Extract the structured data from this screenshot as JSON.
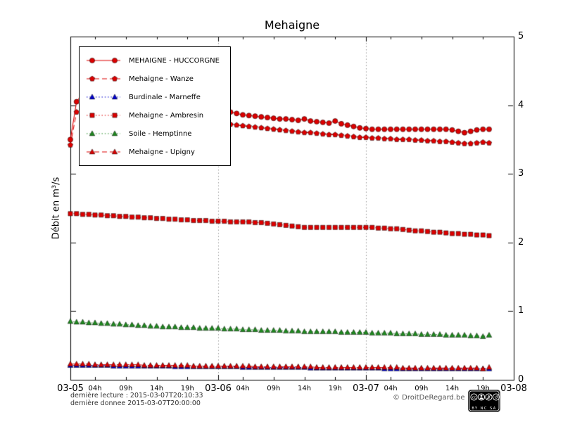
{
  "title": "Mehaigne",
  "y_axis": {
    "label": "Débit en m³/s",
    "min": 0,
    "max": 5,
    "ticks": [
      0,
      1,
      2,
      3,
      4,
      5
    ]
  },
  "x_axis": {
    "range_hours": [
      0,
      72
    ],
    "gridline_hours": [
      24,
      48
    ],
    "major_ticks": [
      {
        "label": "03-05",
        "hour": 0
      },
      {
        "label": "03-06",
        "hour": 24
      },
      {
        "label": "03-07",
        "hour": 48
      },
      {
        "label": "03-08",
        "hour": 72
      }
    ],
    "minor_ticks": [
      {
        "label": "04h",
        "hour": 4
      },
      {
        "label": "09h",
        "hour": 9
      },
      {
        "label": "14h",
        "hour": 14
      },
      {
        "label": "19h",
        "hour": 19
      },
      {
        "label": "04h",
        "hour": 28
      },
      {
        "label": "09h",
        "hour": 33
      },
      {
        "label": "14h",
        "hour": 38
      },
      {
        "label": "19h",
        "hour": 43
      },
      {
        "label": "04h",
        "hour": 52
      },
      {
        "label": "09h",
        "hour": 57
      },
      {
        "label": "14h",
        "hour": 62
      },
      {
        "label": "19h",
        "hour": 67
      }
    ]
  },
  "footer": {
    "line1": "dernière lecture : 2015-03-07T20:10:33",
    "line2": "dernière donnee  2015-03-07T20:00:00",
    "copyright": "© DroitDeRegard.be"
  },
  "cc_badge": {
    "cc": "cc",
    "sub": "BY NC SA"
  },
  "chart_data": {
    "type": "line",
    "title": "Mehaigne",
    "ylabel": "Débit en m³/s",
    "ylim": [
      0,
      5
    ],
    "x_start": "2015-03-05T00:00",
    "x_step_hours": 1,
    "legend_position": "top-left",
    "grid": "vertical-dotted-at-days",
    "series": [
      {
        "name": "MEHAIGNE - HUCCORGNE",
        "color": "#dd0000",
        "marker": "circle",
        "line_style": "solid",
        "values": [
          3.5,
          4.05,
          4.17,
          4.0,
          3.92,
          3.88,
          3.85,
          3.83,
          3.81,
          3.79,
          3.78,
          3.77,
          3.76,
          3.75,
          3.74,
          3.73,
          3.72,
          3.71,
          3.71,
          3.7,
          3.7,
          3.7,
          3.71,
          3.73,
          3.78,
          3.88,
          3.9,
          3.88,
          3.86,
          3.85,
          3.84,
          3.83,
          3.82,
          3.81,
          3.8,
          3.8,
          3.79,
          3.78,
          3.8,
          3.77,
          3.76,
          3.75,
          3.74,
          3.77,
          3.73,
          3.71,
          3.69,
          3.67,
          3.66,
          3.65,
          3.65,
          3.65,
          3.65,
          3.65,
          3.65,
          3.65,
          3.65,
          3.65,
          3.65,
          3.65,
          3.65,
          3.65,
          3.64,
          3.62,
          3.6,
          3.62,
          3.64,
          3.65,
          3.65
        ]
      },
      {
        "name": "Mehaigne - Wanze",
        "color": "#dd0000",
        "marker": "pentagon",
        "line_style": "dashed",
        "values": [
          3.42,
          3.9,
          4.0,
          3.9,
          3.87,
          3.84,
          3.82,
          3.8,
          3.79,
          3.78,
          3.77,
          3.76,
          3.75,
          3.74,
          3.73,
          3.73,
          3.72,
          3.72,
          3.71,
          3.71,
          3.7,
          3.7,
          3.7,
          3.71,
          3.72,
          3.73,
          3.72,
          3.71,
          3.7,
          3.69,
          3.68,
          3.67,
          3.66,
          3.65,
          3.64,
          3.63,
          3.62,
          3.61,
          3.6,
          3.6,
          3.59,
          3.58,
          3.57,
          3.57,
          3.56,
          3.55,
          3.54,
          3.53,
          3.53,
          3.52,
          3.52,
          3.51,
          3.51,
          3.5,
          3.5,
          3.5,
          3.49,
          3.49,
          3.48,
          3.48,
          3.47,
          3.47,
          3.46,
          3.45,
          3.44,
          3.44,
          3.45,
          3.46,
          3.45
        ]
      },
      {
        "name": "Burdinale - Marneffe",
        "color": "#0000d0",
        "marker": "triangle",
        "line_style": "dotted",
        "values": [
          0.21,
          0.21,
          0.21,
          0.21,
          0.21,
          0.21,
          0.21,
          0.2,
          0.2,
          0.2,
          0.2,
          0.2,
          0.2,
          0.2,
          0.2,
          0.2,
          0.2,
          0.19,
          0.19,
          0.19,
          0.19,
          0.19,
          0.19,
          0.19,
          0.19,
          0.19,
          0.19,
          0.19,
          0.18,
          0.18,
          0.18,
          0.18,
          0.18,
          0.18,
          0.18,
          0.18,
          0.18,
          0.18,
          0.18,
          0.17,
          0.17,
          0.17,
          0.17,
          0.17,
          0.17,
          0.17,
          0.17,
          0.17,
          0.17,
          0.17,
          0.17,
          0.16,
          0.16,
          0.16,
          0.16,
          0.16,
          0.16,
          0.16,
          0.16,
          0.16,
          0.16,
          0.16,
          0.16,
          0.16,
          0.16,
          0.16,
          0.16,
          0.16,
          0.16
        ]
      },
      {
        "name": "Mehaigne - Ambresin",
        "color": "#dd0000",
        "marker": "square",
        "line_style": "dotted",
        "values": [
          2.42,
          2.42,
          2.41,
          2.41,
          2.4,
          2.4,
          2.39,
          2.39,
          2.38,
          2.38,
          2.37,
          2.37,
          2.36,
          2.36,
          2.35,
          2.35,
          2.34,
          2.34,
          2.33,
          2.33,
          2.32,
          2.32,
          2.32,
          2.31,
          2.31,
          2.31,
          2.3,
          2.3,
          2.3,
          2.3,
          2.29,
          2.29,
          2.28,
          2.27,
          2.26,
          2.25,
          2.24,
          2.23,
          2.22,
          2.22,
          2.22,
          2.22,
          2.22,
          2.22,
          2.22,
          2.22,
          2.22,
          2.22,
          2.22,
          2.22,
          2.21,
          2.21,
          2.2,
          2.2,
          2.19,
          2.18,
          2.17,
          2.17,
          2.16,
          2.15,
          2.15,
          2.14,
          2.13,
          2.13,
          2.12,
          2.12,
          2.11,
          2.11,
          2.1
        ]
      },
      {
        "name": "Soile - Hemptinne",
        "color": "#1f8a1f",
        "marker": "triangle",
        "line_style": "dotted",
        "values": [
          0.85,
          0.84,
          0.84,
          0.83,
          0.83,
          0.82,
          0.82,
          0.81,
          0.81,
          0.8,
          0.8,
          0.79,
          0.79,
          0.78,
          0.78,
          0.77,
          0.77,
          0.77,
          0.76,
          0.76,
          0.76,
          0.75,
          0.75,
          0.75,
          0.75,
          0.74,
          0.74,
          0.74,
          0.73,
          0.73,
          0.73,
          0.72,
          0.72,
          0.72,
          0.72,
          0.71,
          0.71,
          0.71,
          0.7,
          0.7,
          0.7,
          0.7,
          0.7,
          0.7,
          0.69,
          0.69,
          0.69,
          0.69,
          0.69,
          0.68,
          0.68,
          0.68,
          0.68,
          0.67,
          0.67,
          0.67,
          0.67,
          0.66,
          0.66,
          0.66,
          0.66,
          0.65,
          0.65,
          0.65,
          0.65,
          0.64,
          0.64,
          0.63,
          0.65
        ]
      },
      {
        "name": "Mehaigne - Upigny",
        "color": "#dd0000",
        "marker": "triangle",
        "line_style": "dashed",
        "values": [
          0.23,
          0.23,
          0.23,
          0.23,
          0.22,
          0.22,
          0.22,
          0.22,
          0.22,
          0.22,
          0.22,
          0.22,
          0.21,
          0.21,
          0.21,
          0.21,
          0.21,
          0.21,
          0.21,
          0.21,
          0.2,
          0.2,
          0.2,
          0.2,
          0.2,
          0.2,
          0.2,
          0.2,
          0.2,
          0.2,
          0.19,
          0.19,
          0.19,
          0.19,
          0.19,
          0.19,
          0.19,
          0.19,
          0.19,
          0.19,
          0.18,
          0.18,
          0.18,
          0.18,
          0.18,
          0.18,
          0.18,
          0.18,
          0.18,
          0.18,
          0.18,
          0.18,
          0.18,
          0.18,
          0.17,
          0.17,
          0.17,
          0.17,
          0.17,
          0.17,
          0.17,
          0.17,
          0.17,
          0.17,
          0.17,
          0.17,
          0.17,
          0.16,
          0.18
        ]
      }
    ]
  }
}
